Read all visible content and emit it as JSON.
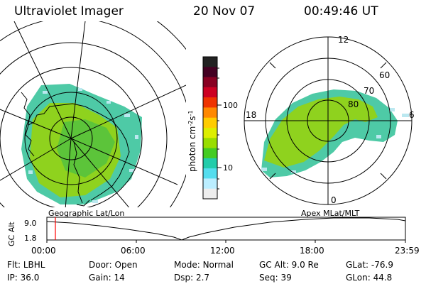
{
  "header": {
    "instrument": "Ultraviolet Imager",
    "date": "20 Nov 07",
    "time": "00:49:46 UT"
  },
  "colorbar": {
    "unit_label": "photon cm",
    "unit_sup1": "-2",
    "unit_mid": "s",
    "unit_sup2": "-1",
    "ticks": [
      "100",
      "10"
    ],
    "colors": [
      "#222222",
      "#440022",
      "#880022",
      "#cc0022",
      "#ee3300",
      "#ff8800",
      "#ffcc00",
      "#ddee00",
      "#99dd00",
      "#44cc22",
      "#22ccaa",
      "#55ddee",
      "#bbeeff",
      "#eeeeee"
    ]
  },
  "right_plot": {
    "mlt_labels": {
      "top": "12",
      "left": "18",
      "right": "6",
      "bottom": "0"
    },
    "lat_labels": [
      "60",
      "70",
      "80"
    ]
  },
  "labels": {
    "geographic": "Geographic Lat/Lon",
    "apex": "Apex MLat/MLT"
  },
  "alt_plot": {
    "ylabel": "GC Alt",
    "yticks": [
      "9.0",
      "1.8"
    ],
    "xticks": [
      "00:00",
      "06:00",
      "12:00",
      "18:00",
      "23:59"
    ],
    "marker_color": "#ff0000"
  },
  "info": {
    "row1": [
      {
        "label": "Flt:",
        "value": "LBHL"
      },
      {
        "label": "Door:",
        "value": "Open"
      },
      {
        "label": "Mode:",
        "value": "Normal"
      },
      {
        "label": "GC Alt:",
        "value": "9.0 Re"
      },
      {
        "label": "GLat:",
        "value": "-76.9"
      }
    ],
    "row2": [
      {
        "label": "IP:",
        "value": "36.0"
      },
      {
        "label": "Gain:",
        "value": "14"
      },
      {
        "label": "Dsp:",
        "value": "2.7"
      },
      {
        "label": "Seq:",
        "value": "39"
      },
      {
        "label": "GLon:",
        "value": "44.8"
      }
    ]
  }
}
